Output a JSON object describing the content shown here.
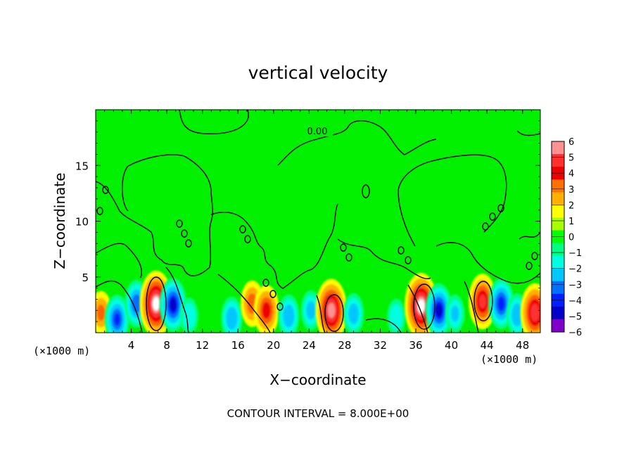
{
  "chart_data": {
    "type": "heatmap",
    "title": "vertical velocity",
    "xlabel": "X−coordinate",
    "ylabel": "Z−coordinate",
    "x_unit_left": "(×1000 m)",
    "x_unit_right": "(×1000 m)",
    "xlim": [
      0,
      50
    ],
    "ylim": [
      0,
      20
    ],
    "x_ticks": [
      4,
      8,
      12,
      16,
      20,
      24,
      28,
      32,
      36,
      40,
      44,
      48
    ],
    "y_ticks": [
      5,
      10,
      15
    ],
    "contour_label": "0.00",
    "contour_interval_note": "CONTOUR INTERVAL = 8.000E+00",
    "colorbar": {
      "levels": [
        6,
        5,
        4,
        3,
        2,
        1,
        0,
        -1,
        -2,
        -3,
        -4,
        -5,
        -6
      ],
      "labels": [
        "6",
        "5",
        "4",
        "3",
        "2",
        "1",
        "0",
        "−1",
        "−2",
        "−3",
        "−4",
        "−5",
        "−6"
      ],
      "colors": [
        "#ff9090",
        "#ff3030",
        "#ee0000",
        "#ff7000",
        "#ffb000",
        "#ffff00",
        "#a8ff00",
        "#00ff00",
        "#00ff80",
        "#00ffe0",
        "#00c8ff",
        "#0070ff",
        "#0020ff",
        "#0000c8",
        "#8000c8"
      ]
    },
    "features": [
      {
        "kind": "updraft",
        "x": 0.6,
        "z": 1.8,
        "w": 3.0
      },
      {
        "kind": "downdraft",
        "x": 2.4,
        "z": 1.2,
        "w": -3.8
      },
      {
        "kind": "downdraft",
        "x": 4.6,
        "z": 2.6,
        "w": -3.6
      },
      {
        "kind": "updraft",
        "x": 6.8,
        "z": 2.6,
        "w": 6.0
      },
      {
        "kind": "downdraft",
        "x": 8.7,
        "z": 2.5,
        "w": -4.4
      },
      {
        "kind": "downdraft",
        "x": 10.5,
        "z": 1.5,
        "w": -2.2
      },
      {
        "kind": "downdraft",
        "x": 15.3,
        "z": 1.3,
        "w": -3.0
      },
      {
        "kind": "updraft",
        "x": 17.6,
        "z": 2.6,
        "w": 3.4
      },
      {
        "kind": "updraft",
        "x": 19.2,
        "z": 2.0,
        "w": 4.0
      },
      {
        "kind": "downdraft",
        "x": 21.7,
        "z": 1.5,
        "w": -3.0
      },
      {
        "kind": "downdraft",
        "x": 24.2,
        "z": 2.0,
        "w": -2.6
      },
      {
        "kind": "updraft",
        "x": 26.5,
        "z": 2.0,
        "w": 5.6
      },
      {
        "kind": "downdraft",
        "x": 29.0,
        "z": 1.7,
        "w": -2.8
      },
      {
        "kind": "downdraft",
        "x": 33.8,
        "z": 1.4,
        "w": -2.2
      },
      {
        "kind": "updraft",
        "x": 36.6,
        "z": 2.4,
        "w": 6.0
      },
      {
        "kind": "downdraft",
        "x": 38.6,
        "z": 2.0,
        "w": -4.4
      },
      {
        "kind": "downdraft",
        "x": 40.4,
        "z": 1.7,
        "w": -2.4
      },
      {
        "kind": "updraft",
        "x": 43.5,
        "z": 2.8,
        "w": 4.6
      },
      {
        "kind": "downdraft",
        "x": 45.6,
        "z": 2.6,
        "w": -4.0
      },
      {
        "kind": "downdraft",
        "x": 47.4,
        "z": 1.6,
        "w": -3.0
      },
      {
        "kind": "updraft",
        "x": 49.4,
        "z": 1.8,
        "w": 5.0
      }
    ]
  }
}
